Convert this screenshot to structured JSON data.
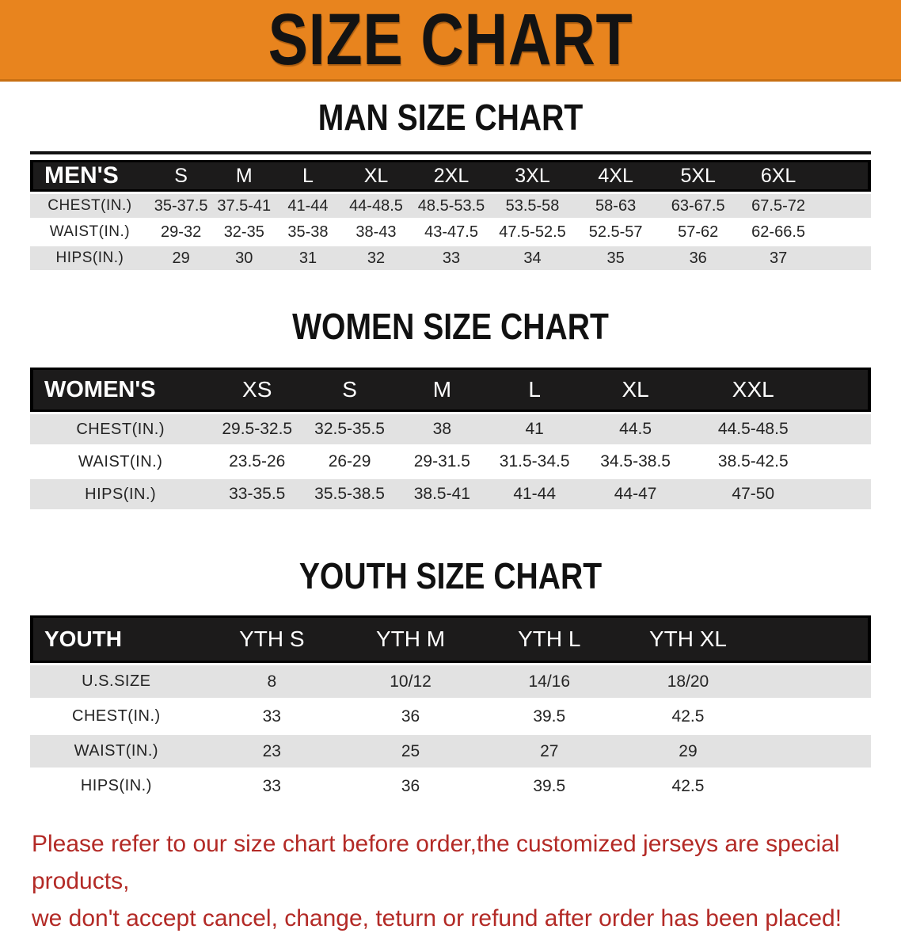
{
  "banner": {
    "title": "SIZE CHART"
  },
  "colors": {
    "banner_orange": "#e8841e",
    "header_band_black": "#1c1b1b",
    "stripe_gray": "#e2e2e2",
    "notice_red": "#b32a26"
  },
  "tables": [
    {
      "heading": "MAN SIZE CHART",
      "header_label": "MEN'S",
      "columns": [
        "S",
        "M",
        "L",
        "XL",
        "2XL",
        "3XL",
        "4XL",
        "5XL",
        "6XL"
      ],
      "rows": [
        {
          "label": "CHEST(IN.)",
          "values": [
            "35-37.5",
            "37.5-41",
            "41-44",
            "44-48.5",
            "48.5-53.5",
            "53.5-58",
            "58-63",
            "63-67.5",
            "67.5-72"
          ]
        },
        {
          "label": "WAIST(IN.)",
          "values": [
            "29-32",
            "32-35",
            "35-38",
            "38-43",
            "43-47.5",
            "47.5-52.5",
            "52.5-57",
            "57-62",
            "62-66.5"
          ]
        },
        {
          "label": "HIPS(IN.)",
          "values": [
            "29",
            "30",
            "31",
            "32",
            "33",
            "34",
            "35",
            "36",
            "37"
          ]
        }
      ]
    },
    {
      "heading": "WOMEN SIZE CHART",
      "header_label": "WOMEN'S",
      "columns": [
        "XS",
        "S",
        "M",
        "L",
        "XL",
        "XXL"
      ],
      "rows": [
        {
          "label": "CHEST(IN.)",
          "values": [
            "29.5-32.5",
            "32.5-35.5",
            "38",
            "41",
            "44.5",
            "44.5-48.5"
          ]
        },
        {
          "label": "WAIST(IN.)",
          "values": [
            "23.5-26",
            "26-29",
            "29-31.5",
            "31.5-34.5",
            "34.5-38.5",
            "38.5-42.5"
          ]
        },
        {
          "label": "HIPS(IN.)",
          "values": [
            "33-35.5",
            "35.5-38.5",
            "38.5-41",
            "41-44",
            "44-47",
            "47-50"
          ]
        }
      ]
    },
    {
      "heading": "YOUTH SIZE CHART",
      "header_label": "YOUTH",
      "columns": [
        "YTH S",
        "YTH M",
        "YTH L",
        "YTH XL"
      ],
      "rows": [
        {
          "label": "U.S.SIZE",
          "values": [
            "8",
            "10/12",
            "14/16",
            "18/20"
          ]
        },
        {
          "label": "CHEST(IN.)",
          "values": [
            "33",
            "36",
            "39.5",
            "42.5"
          ]
        },
        {
          "label": "WAIST(IN.)",
          "values": [
            "23",
            "25",
            "27",
            "29"
          ]
        },
        {
          "label": "HIPS(IN.)",
          "values": [
            "33",
            "36",
            "39.5",
            "42.5"
          ]
        }
      ]
    }
  ],
  "notice": {
    "line1": "Please refer to our size chart before order,the customized jerseys are special products,",
    "line2": "we don't accept cancel, change, teturn or refund after order has been placed!"
  }
}
